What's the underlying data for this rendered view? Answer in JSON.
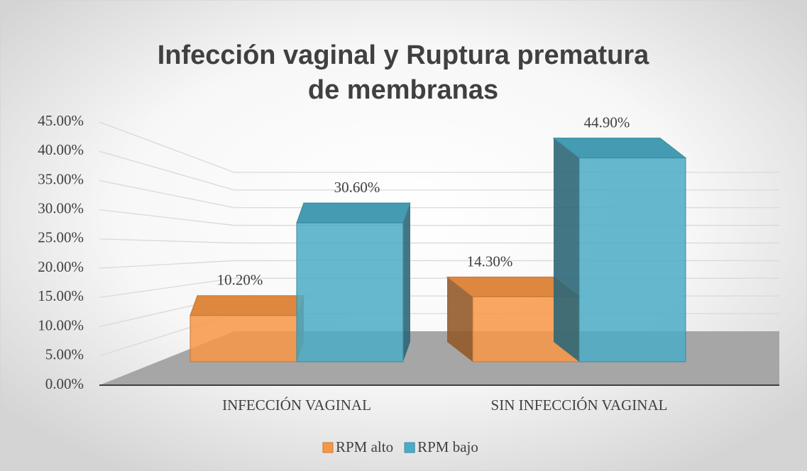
{
  "chart_data": {
    "type": "bar3d",
    "title": "Infección vaginal y Ruptura prematura de membranas",
    "categories": [
      "INFECCIÓN VAGINAL",
      "SIN INFECCIÓN VAGINAL"
    ],
    "series": [
      {
        "name": "RPM alto",
        "color": "#f79646",
        "values": [
          10.2,
          14.3
        ],
        "value_labels": [
          "10.20%",
          "14.30%"
        ]
      },
      {
        "name": "RPM bajo",
        "color": "#4bacc6",
        "values": [
          30.6,
          44.9
        ],
        "value_labels": [
          "30.60%",
          "44.90%"
        ]
      }
    ],
    "ylim": [
      0,
      45
    ],
    "yticks": [
      {
        "value": 0,
        "label": "0.00%"
      },
      {
        "value": 5,
        "label": "5.00%"
      },
      {
        "value": 10,
        "label": "10.00%"
      },
      {
        "value": 15,
        "label": "15.00%"
      },
      {
        "value": 20,
        "label": "20.00%"
      },
      {
        "value": 25,
        "label": "25.00%"
      },
      {
        "value": 30,
        "label": "30.00%"
      },
      {
        "value": 35,
        "label": "35.00%"
      },
      {
        "value": 40,
        "label": "40.00%"
      },
      {
        "value": 45,
        "label": "45.00%"
      }
    ],
    "grid": true,
    "legend": "bottom"
  }
}
